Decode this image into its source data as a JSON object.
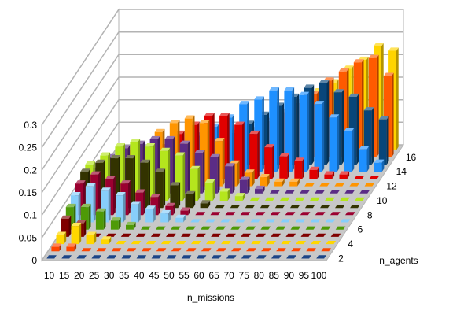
{
  "chart_data": {
    "type": "bar",
    "style": "3d-column",
    "title": "",
    "xlabel": "n_missions",
    "zlabel": "n_agents",
    "ylabel": "",
    "ylim": [
      0,
      0.3
    ],
    "y_ticks": [
      "0",
      "0.05",
      "0.1",
      "0.15",
      "0.2",
      "0.25",
      "0.3"
    ],
    "categories": [
      "10",
      "15",
      "20",
      "25",
      "30",
      "35",
      "40",
      "45",
      "50",
      "55",
      "60",
      "65",
      "70",
      "75",
      "80",
      "85",
      "90",
      "95",
      "100"
    ],
    "depth_tick_labels": [
      "2",
      "4",
      "6",
      "8",
      "10",
      "12",
      "14",
      "16"
    ],
    "grid": true,
    "series": [
      {
        "agents": 2,
        "color": "#1c4587",
        "values": [
          0,
          0,
          0,
          0,
          0,
          0,
          0,
          0,
          0,
          0,
          0,
          0,
          0,
          0,
          0,
          0,
          0,
          0,
          0
        ]
      },
      {
        "agents": 3,
        "color": "#ff4500",
        "values": [
          0.01,
          0.01,
          0,
          0,
          0,
          0,
          0,
          0,
          0,
          0,
          0,
          0,
          0,
          0,
          0,
          0,
          0,
          0,
          0
        ]
      },
      {
        "agents": 4,
        "color": "#ffd700",
        "values": [
          0.02,
          0.04,
          0.02,
          0.01,
          0,
          0,
          0,
          0,
          0,
          0,
          0,
          0,
          0,
          0,
          0,
          0,
          0,
          0,
          0
        ]
      },
      {
        "agents": 5,
        "color": "#800000",
        "values": [
          0.04,
          0.03,
          0,
          0,
          0,
          0,
          0,
          0,
          0,
          0,
          0,
          0,
          0,
          0,
          0,
          0,
          0,
          0,
          0
        ]
      },
      {
        "agents": 6,
        "color": "#4e9a06",
        "values": [
          0.05,
          0.05,
          0.04,
          0.02,
          0.01,
          0,
          0,
          0,
          0,
          0,
          0,
          0,
          0,
          0,
          0,
          0,
          0,
          0,
          0
        ]
      },
      {
        "agents": 7,
        "color": "#87cefa",
        "values": [
          0.06,
          0.08,
          0.07,
          0.06,
          0.04,
          0.03,
          0.02,
          0.01,
          0,
          0,
          0,
          0,
          0,
          0,
          0,
          0,
          0,
          0,
          0
        ]
      },
      {
        "agents": 8,
        "color": "#9b0030",
        "values": [
          0.07,
          0.09,
          0.08,
          0.07,
          0.05,
          0.04,
          0.02,
          0.01,
          0,
          0,
          0,
          0,
          0,
          0,
          0,
          0,
          0,
          0,
          0
        ]
      },
      {
        "agents": 9,
        "color": "#333300",
        "values": [
          0.08,
          0.1,
          0.11,
          0.11,
          0.1,
          0.08,
          0.05,
          0.03,
          0.01,
          0,
          0,
          0,
          0,
          0,
          0,
          0,
          0,
          0,
          0
        ]
      },
      {
        "agents": 10,
        "color": "#b5e61d",
        "values": [
          0.08,
          0.1,
          0.12,
          0.13,
          0.12,
          0.11,
          0.1,
          0.07,
          0.04,
          0.02,
          0.01,
          0,
          0,
          0,
          0,
          0,
          0,
          0,
          0
        ]
      },
      {
        "agents": 11,
        "color": "#5b2c86",
        "values": [
          0.05,
          0.08,
          0.1,
          0.11,
          0.12,
          0.12,
          0.11,
          0.09,
          0.08,
          0.06,
          0.03,
          0.01,
          0,
          0,
          0,
          0,
          0,
          0,
          0
        ]
      },
      {
        "agents": 12,
        "color": "#ff9500",
        "values": [
          0.04,
          0.06,
          0.08,
          0.08,
          0.12,
          0.14,
          0.15,
          0.14,
          0.1,
          0.05,
          0.03,
          0.02,
          0.01,
          0.01,
          0,
          0,
          0,
          0,
          0
        ]
      },
      {
        "agents": 13,
        "color": "#e00000",
        "values": [
          0.02,
          0.04,
          0.05,
          0.06,
          0.07,
          0.1,
          0.12,
          0.14,
          0.14,
          0.12,
          0.1,
          0.07,
          0.05,
          0.04,
          0.02,
          0.01,
          0.01,
          0,
          0
        ]
      },
      {
        "agents": 14,
        "color": "#1e90ff",
        "values": [
          0,
          0.01,
          0.02,
          0.03,
          0.04,
          0.06,
          0.08,
          0.1,
          0.12,
          0.15,
          0.16,
          0.18,
          0.18,
          0.17,
          0.15,
          0.12,
          0.09,
          0.05,
          0.02
        ]
      },
      {
        "agents": 15,
        "color": "#08467a",
        "values": [
          0,
          0,
          0,
          0,
          0.01,
          0.02,
          0.03,
          0.05,
          0.07,
          0.09,
          0.11,
          0.13,
          0.15,
          0.17,
          0.18,
          0.16,
          0.15,
          0.12,
          0.1
        ]
      },
      {
        "agents": 16,
        "color": "#ff5a00",
        "values": [
          0,
          0,
          0,
          0,
          0,
          0,
          0.01,
          0.02,
          0.04,
          0.06,
          0.08,
          0.1,
          0.12,
          0.14,
          0.17,
          0.19,
          0.21,
          0.22,
          0.18
        ]
      },
      {
        "agents": 17,
        "color": "#ffd400",
        "values": [
          0,
          0,
          0,
          0,
          0,
          0,
          0,
          0,
          0.01,
          0.03,
          0.05,
          0.07,
          0.1,
          0.13,
          0.15,
          0.18,
          0.2,
          0.23,
          0.22
        ]
      }
    ]
  }
}
